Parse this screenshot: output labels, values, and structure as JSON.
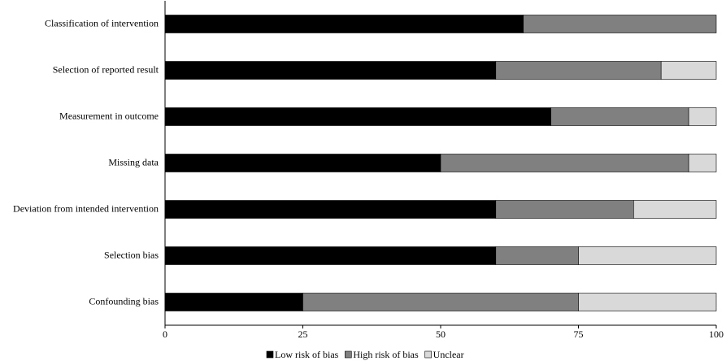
{
  "chart_data": {
    "type": "stacked-bar-horizontal",
    "categories": [
      "Classification of intervention",
      "Selection of reported result",
      "Measurement in outcome",
      "Missing data",
      "Deviation from intended intervention",
      "Selection bias",
      "Confounding bias"
    ],
    "series": [
      {
        "name": "Low risk of bias",
        "color": "#000000",
        "values": [
          65,
          60,
          70,
          50,
          60,
          60,
          25
        ]
      },
      {
        "name": "High risk of bias",
        "color": "#808080",
        "values": [
          35,
          30,
          25,
          45,
          25,
          15,
          50
        ]
      },
      {
        "name": "Unclear",
        "color": "#d9d9d9",
        "values": [
          0,
          10,
          5,
          5,
          15,
          25,
          25
        ]
      }
    ],
    "xlim": [
      0,
      100
    ],
    "xticks": [
      0,
      25,
      50,
      75,
      100
    ]
  }
}
